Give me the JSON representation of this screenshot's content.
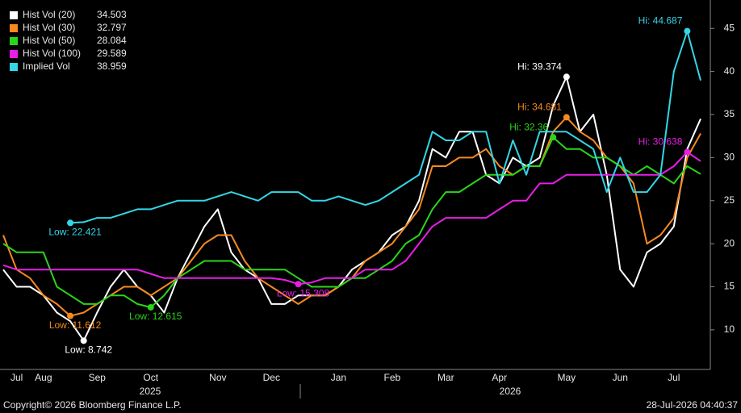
{
  "chart_data": {
    "type": "line",
    "categories": [
      null,
      "Jul",
      null,
      "Aug",
      null,
      null,
      null,
      "Sep",
      null,
      null,
      null,
      "Oct",
      null,
      null,
      null,
      null,
      "Nov",
      null,
      null,
      null,
      "Dec",
      null,
      null,
      null,
      null,
      "Jan",
      null,
      null,
      null,
      "Feb",
      null,
      null,
      null,
      "Mar",
      null,
      null,
      null,
      "Apr",
      null,
      null,
      null,
      null,
      "May",
      null,
      null,
      null,
      "Jun",
      null,
      null,
      null,
      "Jul",
      null,
      null
    ],
    "year_labels": [
      "2025",
      "2026"
    ],
    "ylim": [
      5.4,
      48.3
    ],
    "yticks": [
      10,
      15,
      20,
      25,
      30,
      35,
      40,
      45
    ],
    "background": "#000000",
    "legend": "top-left",
    "series": [
      {
        "name": "Hist Vol (20)",
        "color": "#ffffff",
        "values": [
          17,
          15,
          15,
          14,
          12,
          11,
          8.742,
          12,
          15,
          17,
          15,
          14,
          12,
          16,
          19,
          22,
          24,
          19,
          17,
          16,
          13,
          13,
          14,
          14,
          14,
          15,
          17,
          18,
          19,
          21,
          22,
          25,
          31,
          30,
          33,
          33,
          28,
          27,
          30,
          29,
          30,
          36,
          39.374,
          33,
          35,
          28,
          17,
          15,
          19,
          20,
          22,
          31,
          34.503
        ],
        "value_labels": [
          null,
          null,
          null,
          null,
          null,
          null,
          "Low: 8.742",
          null,
          null,
          null,
          null,
          null,
          null,
          null,
          null,
          null,
          null,
          null,
          null,
          null,
          null,
          null,
          null,
          null,
          null,
          null,
          null,
          null,
          null,
          null,
          null,
          null,
          null,
          null,
          null,
          null,
          null,
          null,
          null,
          null,
          null,
          null,
          "Hi: 39.374",
          null,
          null,
          null,
          null,
          null,
          null,
          null,
          null,
          null,
          null
        ]
      },
      {
        "name": "Hist Vol (30)",
        "color": "#f7891f",
        "values": [
          21,
          17,
          16,
          14,
          13,
          11.612,
          12,
          13,
          14,
          15,
          15,
          14,
          15,
          16,
          18,
          20,
          21,
          21,
          18,
          16,
          15,
          14,
          13,
          14,
          14,
          15,
          16,
          18,
          19,
          20,
          22,
          24,
          29,
          29,
          30,
          30,
          31,
          29,
          28,
          29,
          29,
          33,
          34.681,
          33,
          32,
          30,
          29,
          27,
          20,
          21,
          23,
          30,
          32.797
        ],
        "value_labels": [
          null,
          null,
          null,
          null,
          null,
          "Low: 11.612",
          null,
          null,
          null,
          null,
          null,
          null,
          null,
          null,
          null,
          null,
          null,
          null,
          null,
          null,
          null,
          null,
          null,
          null,
          null,
          null,
          null,
          null,
          null,
          null,
          null,
          null,
          null,
          null,
          null,
          null,
          null,
          null,
          null,
          null,
          null,
          null,
          "Hi: 34.681",
          null,
          null,
          null,
          null,
          null,
          null,
          null,
          null,
          null,
          null
        ]
      },
      {
        "name": "Hist Vol (50)",
        "color": "#2ad51a",
        "values": [
          20,
          19,
          19,
          19,
          15,
          14,
          13,
          13,
          14,
          14,
          13,
          12.615,
          14,
          16,
          17,
          18,
          18,
          18,
          17,
          17,
          17,
          17,
          16,
          15,
          15,
          15,
          16,
          16,
          17,
          18,
          20,
          21,
          24,
          26,
          26,
          27,
          28,
          28,
          28,
          29,
          29,
          32.36,
          31,
          31,
          30,
          30,
          29,
          28,
          29,
          28,
          27,
          29,
          28.084
        ],
        "value_labels": [
          null,
          null,
          null,
          null,
          null,
          null,
          null,
          null,
          null,
          null,
          null,
          "Low: 12.615",
          null,
          null,
          null,
          null,
          null,
          null,
          null,
          null,
          null,
          null,
          null,
          null,
          null,
          null,
          null,
          null,
          null,
          null,
          null,
          null,
          null,
          null,
          null,
          null,
          null,
          null,
          null,
          null,
          null,
          "Hi: 32.36",
          null,
          null,
          null,
          null,
          null,
          null,
          null,
          null,
          null,
          null,
          null
        ]
      },
      {
        "name": "Hist Vol (100)",
        "color": "#e81ee8",
        "values": [
          17.5,
          17,
          17,
          17,
          17,
          17,
          17,
          17,
          17,
          17,
          17,
          16.5,
          16,
          16,
          16,
          16,
          16,
          16,
          16,
          16,
          16,
          15.8,
          15.308,
          15.5,
          16,
          16,
          16,
          17,
          17,
          17,
          18,
          20,
          22,
          23,
          23,
          23,
          23,
          24,
          25,
          25,
          27,
          27,
          28,
          28,
          28,
          28,
          28,
          28,
          28,
          28,
          29,
          30.638,
          29.589
        ],
        "value_labels": [
          null,
          null,
          null,
          null,
          null,
          null,
          null,
          null,
          null,
          null,
          null,
          null,
          null,
          null,
          null,
          null,
          null,
          null,
          null,
          null,
          null,
          null,
          "Low: 15.308",
          null,
          null,
          null,
          null,
          null,
          null,
          null,
          null,
          null,
          null,
          null,
          null,
          null,
          null,
          null,
          null,
          null,
          null,
          null,
          null,
          null,
          null,
          null,
          null,
          null,
          null,
          null,
          null,
          "Hi: 30.638",
          null
        ]
      },
      {
        "name": "Implied Vol",
        "color": "#33d6e6",
        "values": [
          null,
          null,
          null,
          null,
          null,
          22.421,
          22.5,
          23,
          23,
          23.5,
          24,
          24,
          24.5,
          25,
          25,
          25,
          25.5,
          26,
          25.5,
          25,
          26,
          26,
          26,
          25,
          25,
          25.5,
          25,
          24.5,
          25,
          26,
          27,
          28,
          33,
          32,
          32,
          33,
          33,
          27,
          32,
          28,
          33,
          33,
          33,
          32,
          31,
          26,
          30,
          26,
          26,
          28,
          40,
          44.687,
          38.959
        ],
        "value_labels": [
          null,
          null,
          null,
          null,
          null,
          "Low: 22.421",
          null,
          null,
          null,
          null,
          null,
          null,
          null,
          null,
          null,
          null,
          null,
          null,
          null,
          null,
          null,
          null,
          null,
          null,
          null,
          null,
          null,
          null,
          null,
          null,
          null,
          null,
          null,
          null,
          null,
          null,
          null,
          null,
          null,
          null,
          null,
          null,
          null,
          null,
          null,
          null,
          null,
          null,
          null,
          null,
          null,
          "Hi: 44.687",
          null
        ]
      }
    ],
    "copyright": "Copyright© 2026 Bloomberg Finance L.P.",
    "timestamp": "28-Jul-2026 04:40:37"
  }
}
